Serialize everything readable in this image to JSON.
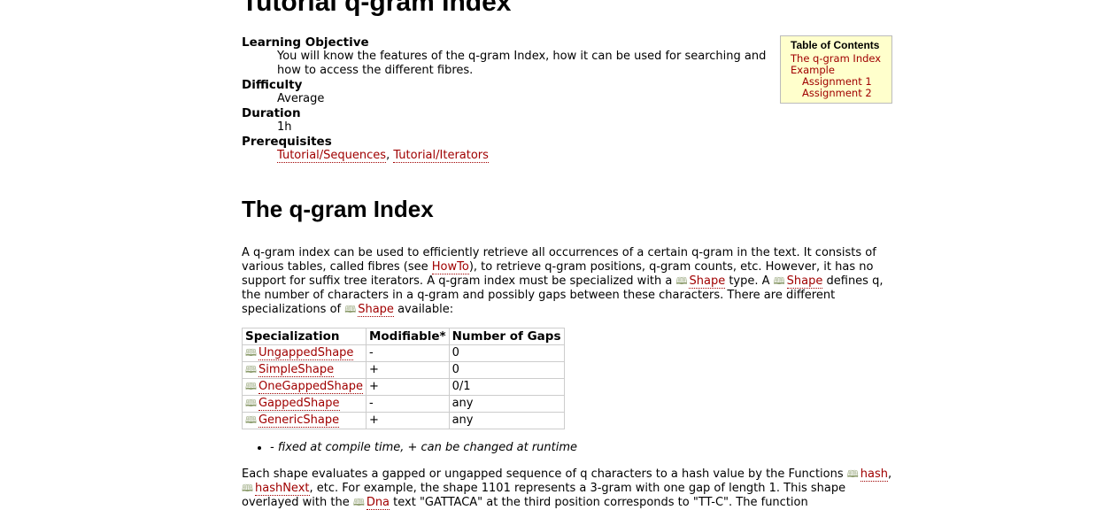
{
  "page": {
    "title": "Tutorial q-gram Index"
  },
  "meta": {
    "learning_objective_label": "Learning Objective",
    "learning_objective_text": "You will know the features of the q-gram Index, how it can be used for searching and how to access the different fibres.",
    "difficulty_label": "Difficulty",
    "difficulty_value": "Average",
    "duration_label": "Duration",
    "duration_value": "1h",
    "prerequisites_label": "Prerequisites",
    "prerequisites": [
      "Tutorial/Sequences",
      "Tutorial/Iterators"
    ],
    "prereq_separator": ", "
  },
  "toc": {
    "title": "Table of Contents",
    "items": [
      "The q-gram Index",
      "Example",
      "Assignment 1",
      "Assignment 2"
    ]
  },
  "section": {
    "heading": "The q-gram Index",
    "p1": {
      "t1": "A q-gram index can be used to efficiently retrieve all occurrences of a certain q-gram in the text. It consists of various tables, called fibres (see ",
      "link_howto": "HowTo",
      "t2": "), to retrieve q-gram positions, q-gram counts, etc. However, it has no support for suffix tree iterators. A q-gram index must be specialized with a ",
      "link_shape1": "Shape",
      "t3": " type. A ",
      "link_shape2": "Shape",
      "t4": " defines q, the number of characters in a q-gram and possibly gaps between these characters. There are different specializations of ",
      "link_shape3": "Shape",
      "t5": " available:"
    },
    "table": {
      "headers": [
        "Specialization",
        "Modifiable*",
        "Number of Gaps"
      ],
      "rows": [
        {
          "spec": "UngappedShape",
          "mod": "-",
          "gaps": "0"
        },
        {
          "spec": "SimpleShape",
          "mod": "+",
          "gaps": "0"
        },
        {
          "spec": "OneGappedShape",
          "mod": "+",
          "gaps": "0/1"
        },
        {
          "spec": "GappedShape",
          "mod": "-",
          "gaps": "any"
        },
        {
          "spec": "GenericShape",
          "mod": "+",
          "gaps": "any"
        }
      ]
    },
    "note": "- fixed at compile time, + can be changed at runtime",
    "p2": {
      "t1": "Each shape evaluates a gapped or ungapped sequence of q characters to a hash value by the Functions ",
      "link_hash": "hash",
      "t2": ", ",
      "link_hashnext": "hashNext",
      "t3": ", etc. For example, the shape 1101 represents a 3-gram with one gap of length 1. This shape overlayed with the ",
      "link_dna": "Dna",
      "t4": " text \"GATTACA\" at the third position corresponds to \"TT-C\". The function"
    }
  },
  "icons": {
    "doc_link": "book-icon"
  }
}
